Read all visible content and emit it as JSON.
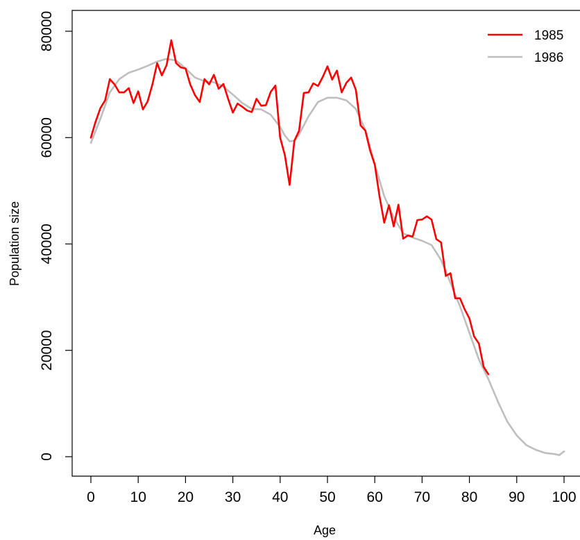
{
  "chart_data": {
    "type": "line",
    "title": "",
    "xlabel": "Age",
    "ylabel": "Population size",
    "xlim": [
      0,
      100
    ],
    "ylim": [
      0,
      80000
    ],
    "x_ticks": [
      0,
      10,
      20,
      30,
      40,
      50,
      60,
      70,
      80,
      90,
      100
    ],
    "x_tick_labels": [
      "0",
      "10",
      "20",
      "30",
      "40",
      "50",
      "60",
      "70",
      "80",
      "90",
      "100"
    ],
    "y_ticks": [
      0,
      20000,
      40000,
      60000,
      80000
    ],
    "y_tick_labels": [
      "0",
      "20000",
      "40000",
      "60000",
      "80000"
    ],
    "grid": false,
    "legend_position": "top-right",
    "series": [
      {
        "name": "1985",
        "color": "#ff0000",
        "x": [
          0,
          1,
          2,
          3,
          4,
          5,
          6,
          7,
          8,
          9,
          10,
          11,
          12,
          13,
          14,
          15,
          16,
          17,
          18,
          19,
          20,
          21,
          22,
          23,
          24,
          25,
          26,
          27,
          28,
          29,
          30,
          31,
          32,
          33,
          34,
          35,
          36,
          37,
          38,
          39,
          40,
          41,
          42,
          43,
          44,
          45,
          46,
          47,
          48,
          49,
          50,
          51,
          52,
          53,
          54,
          55,
          56,
          57,
          58,
          59,
          60,
          61,
          62,
          63,
          64,
          65,
          66,
          67,
          68,
          69,
          70,
          71,
          72,
          73,
          74,
          75,
          76,
          77,
          78,
          79,
          80,
          81,
          82,
          83,
          84
        ],
        "y": [
          60000,
          63000,
          65500,
          67000,
          71000,
          70000,
          68500,
          68500,
          69300,
          66500,
          68700,
          65300,
          66800,
          70000,
          74000,
          71700,
          73600,
          78300,
          74000,
          73200,
          73000,
          70000,
          68000,
          66700,
          71000,
          70000,
          71800,
          69200,
          70100,
          67300,
          64700,
          66400,
          65800,
          65100,
          64800,
          67300,
          66000,
          66100,
          68600,
          69800,
          60000,
          56700,
          51100,
          59400,
          61300,
          68400,
          68500,
          70200,
          69700,
          71400,
          73400,
          70900,
          72600,
          68500,
          70300,
          71300,
          69000,
          62300,
          61300,
          57600,
          54900,
          49000,
          44000,
          47300,
          43300,
          47400,
          41000,
          41600,
          41400,
          44500,
          44600,
          45200,
          44600,
          40900,
          40300,
          34000,
          34500,
          29800,
          29800,
          27700,
          26000,
          22600,
          21300,
          16900,
          15500
        ]
      },
      {
        "name": "1986",
        "color": "#bebebe",
        "x": [
          0,
          2,
          4,
          6,
          8,
          10,
          12,
          14,
          16,
          18,
          20,
          22,
          24,
          26,
          28,
          30,
          32,
          34,
          36,
          38,
          40,
          41,
          42,
          43,
          44,
          46,
          48,
          50,
          52,
          54,
          56,
          58,
          60,
          62,
          64,
          66,
          68,
          70,
          72,
          74,
          76,
          78,
          80,
          82,
          84,
          86,
          88,
          90,
          92,
          94,
          96,
          98,
          99,
          100
        ],
        "y": [
          59000,
          63500,
          68500,
          71000,
          72200,
          72800,
          73500,
          74300,
          74800,
          74500,
          73000,
          71300,
          70600,
          70400,
          69600,
          68100,
          66500,
          65400,
          65300,
          64300,
          62000,
          60400,
          59300,
          59400,
          60600,
          64000,
          66700,
          67500,
          67500,
          67000,
          65400,
          61500,
          55000,
          49000,
          45000,
          42000,
          41200,
          40600,
          39800,
          37000,
          32700,
          28300,
          23300,
          18300,
          14600,
          10400,
          6600,
          4000,
          2200,
          1300,
          700,
          500,
          300,
          1000
        ]
      }
    ]
  }
}
